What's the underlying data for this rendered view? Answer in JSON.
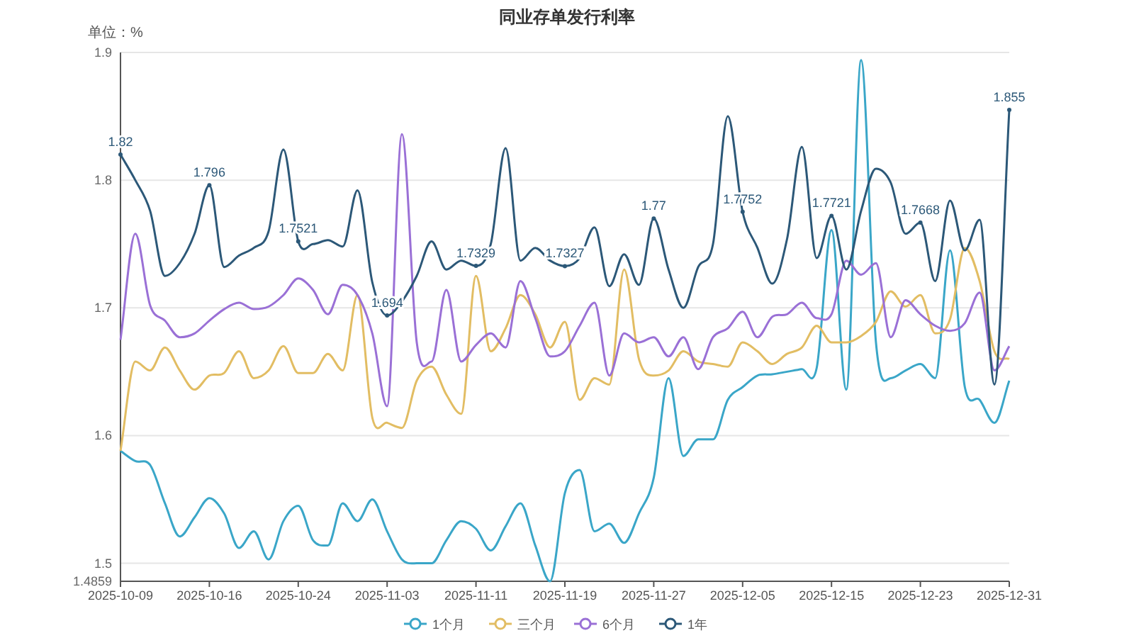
{
  "chart_data": {
    "type": "line",
    "title": "同业存单发行利率",
    "ylabel": "单位：%",
    "categories": [
      "2025-10-09",
      null,
      null,
      null,
      null,
      null,
      "2025-10-16",
      null,
      null,
      null,
      null,
      null,
      "2025-10-24",
      null,
      null,
      null,
      null,
      null,
      "2025-11-03",
      null,
      null,
      null,
      null,
      null,
      "2025-11-11",
      null,
      null,
      null,
      null,
      null,
      "2025-11-19",
      null,
      null,
      null,
      null,
      null,
      "2025-11-27",
      null,
      null,
      null,
      null,
      null,
      "2025-12-05",
      null,
      null,
      null,
      null,
      null,
      "2025-12-15",
      null,
      null,
      null,
      null,
      null,
      "2025-12-23",
      null,
      null,
      null,
      null,
      null,
      "2025-12-31"
    ],
    "ylim": [
      1.4859,
      1.9
    ],
    "yticks": [
      1.4859,
      1.5,
      1.6,
      1.7,
      1.8,
      1.9
    ],
    "grid": "y",
    "legend": "bottom",
    "marker": "none",
    "line_style": "solid",
    "series": [
      {
        "name": "1个月",
        "color": "#3aa6c8",
        "values": [
          1.588,
          1.58,
          1.577,
          1.547,
          1.521,
          1.536,
          1.551,
          1.539,
          1.512,
          1.525,
          1.503,
          1.533,
          1.545,
          1.518,
          1.514,
          1.547,
          1.533,
          1.55,
          1.525,
          1.503,
          1.5,
          1.5,
          1.518,
          1.533,
          1.527,
          1.51,
          1.529,
          1.547,
          1.514,
          1.4859,
          1.555,
          1.573,
          1.525,
          1.531,
          1.516,
          1.539,
          1.567,
          1.645,
          1.584,
          1.597,
          1.597,
          1.628,
          1.638,
          1.647,
          1.648,
          1.65,
          1.652,
          1.653,
          1.761,
          1.636,
          1.894,
          1.673,
          1.645,
          1.651,
          1.656,
          1.645,
          1.745,
          1.638,
          1.628,
          1.61,
          1.643
        ]
      },
      {
        "name": "三个月",
        "color": "#e2bd63",
        "values": [
          1.588,
          1.658,
          1.651,
          1.669,
          1.651,
          1.636,
          1.647,
          1.649,
          1.666,
          1.645,
          1.651,
          1.67,
          1.649,
          1.649,
          1.664,
          1.651,
          1.71,
          1.614,
          1.61,
          1.606,
          1.643,
          1.654,
          1.632,
          1.617,
          1.725,
          1.666,
          1.684,
          1.71,
          1.695,
          1.669,
          1.689,
          1.628,
          1.645,
          1.64,
          1.73,
          1.66,
          1.647,
          1.651,
          1.666,
          1.658,
          1.656,
          1.654,
          1.673,
          1.666,
          1.656,
          1.664,
          1.669,
          1.686,
          1.673,
          1.673,
          1.678,
          1.689,
          1.713,
          1.701,
          1.71,
          1.68,
          1.691,
          1.747,
          1.721,
          1.666,
          1.66
        ]
      },
      {
        "name": "6个月",
        "color": "#9a70d6",
        "values": [
          1.675,
          1.758,
          1.702,
          1.69,
          1.677,
          1.68,
          1.69,
          1.699,
          1.704,
          1.699,
          1.701,
          1.71,
          1.723,
          1.714,
          1.695,
          1.718,
          1.71,
          1.68,
          1.623,
          1.836,
          1.673,
          1.658,
          1.714,
          1.658,
          1.671,
          1.68,
          1.669,
          1.721,
          1.692,
          1.662,
          1.666,
          1.686,
          1.704,
          1.647,
          1.68,
          1.673,
          1.677,
          1.662,
          1.677,
          1.652,
          1.677,
          1.684,
          1.697,
          1.677,
          1.693,
          1.695,
          1.704,
          1.692,
          1.695,
          1.737,
          1.726,
          1.735,
          1.677,
          1.706,
          1.695,
          1.686,
          1.682,
          1.688,
          1.712,
          1.651,
          1.67
        ]
      },
      {
        "name": "1年",
        "color": "#2c5878",
        "values": [
          1.82,
          1.8,
          1.776,
          1.725,
          1.735,
          1.758,
          1.796,
          1.732,
          1.741,
          1.747,
          1.76,
          1.824,
          1.7521,
          1.75,
          1.753,
          1.748,
          1.792,
          1.72,
          1.694,
          1.705,
          1.725,
          1.752,
          1.73,
          1.737,
          1.7329,
          1.75,
          1.825,
          1.737,
          1.747,
          1.737,
          1.7327,
          1.739,
          1.763,
          1.717,
          1.742,
          1.718,
          1.77,
          1.73,
          1.7,
          1.732,
          1.75,
          1.85,
          1.7752,
          1.747,
          1.719,
          1.754,
          1.826,
          1.739,
          1.7721,
          1.73,
          1.776,
          1.809,
          1.798,
          1.758,
          1.7668,
          1.721,
          1.784,
          1.745,
          1.769,
          1.64,
          1.855
        ],
        "value_labels": [
          "1.82",
          null,
          null,
          null,
          null,
          null,
          "1.796",
          null,
          null,
          null,
          null,
          null,
          "1.7521",
          null,
          null,
          null,
          null,
          null,
          "1.694",
          null,
          null,
          null,
          null,
          null,
          "1.7329",
          null,
          null,
          null,
          null,
          null,
          "1.7327",
          null,
          null,
          null,
          null,
          null,
          "1.77",
          null,
          null,
          null,
          null,
          null,
          "1.7752",
          null,
          null,
          null,
          null,
          null,
          "1.7721",
          null,
          null,
          null,
          null,
          null,
          "1.7668",
          null,
          null,
          null,
          null,
          null,
          "1.855"
        ]
      }
    ]
  }
}
